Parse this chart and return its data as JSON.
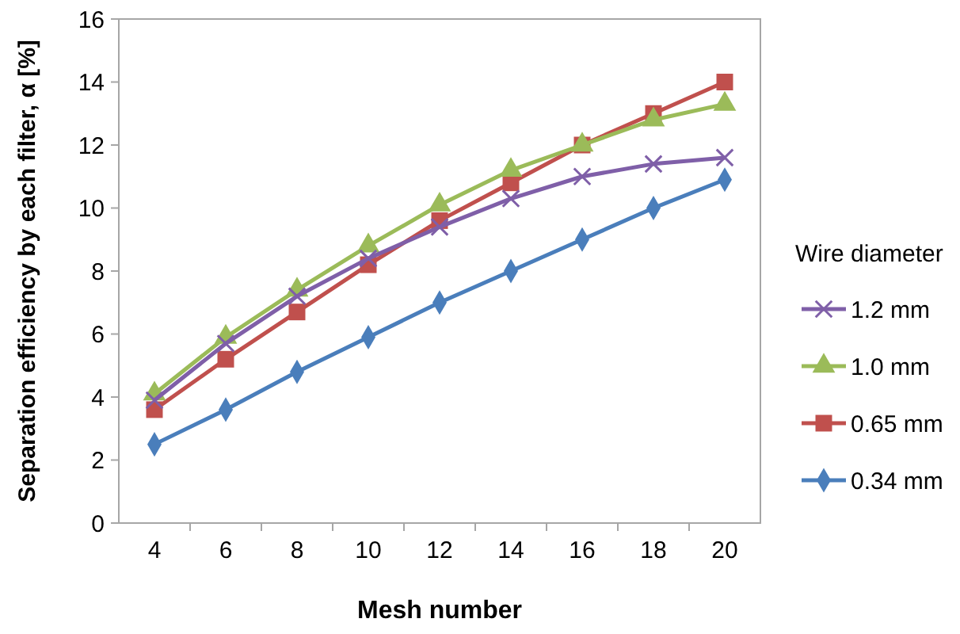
{
  "chart_data": {
    "type": "line",
    "xlabel": "Mesh number",
    "ylabel": "Separation efficiency by each filter, α [%]",
    "legend_title": "Wire diameter",
    "legend": "right",
    "grid": false,
    "categories": [
      "4",
      "6",
      "8",
      "10",
      "12",
      "14",
      "16",
      "18",
      "20"
    ],
    "ylim": [
      0,
      16
    ],
    "yticks": [
      0,
      2,
      4,
      6,
      8,
      10,
      12,
      14,
      16
    ],
    "series": [
      {
        "name": "1.2 mm",
        "color": "#7f5fa8",
        "marker": "cross",
        "values": [
          3.9,
          5.7,
          7.2,
          8.4,
          9.4,
          10.3,
          11.0,
          11.4,
          11.6
        ]
      },
      {
        "name": "1.0 mm",
        "color": "#9bbb59",
        "marker": "triangle",
        "values": [
          4.1,
          5.9,
          7.4,
          8.8,
          10.1,
          11.2,
          12.0,
          12.8,
          13.3
        ]
      },
      {
        "name": "0.65 mm",
        "color": "#c0504d",
        "marker": "square",
        "values": [
          3.6,
          5.2,
          6.7,
          8.2,
          9.6,
          10.8,
          12.0,
          13.0,
          14.0
        ]
      },
      {
        "name": "0.34 mm",
        "color": "#4a7ebb",
        "marker": "diamond",
        "values": [
          2.5,
          3.6,
          4.8,
          5.9,
          7.0,
          8.0,
          9.0,
          10.0,
          10.9
        ]
      }
    ]
  }
}
